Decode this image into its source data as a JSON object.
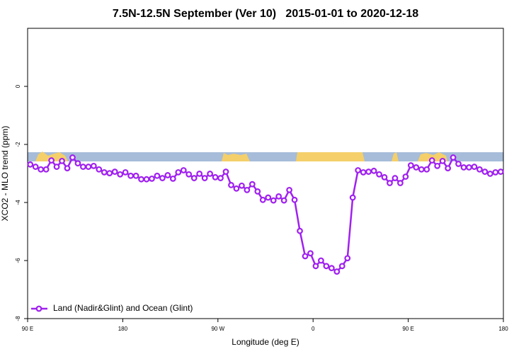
{
  "chart_data": {
    "type": "line",
    "title": "7.5N-12.5N September (Ver 10)   2015-01-01 to 2020-12-18",
    "xlabel": "Longitude (deg E)",
    "ylabel": "XCO2 - MLO trend (ppm)",
    "xlim": [
      90,
      540
    ],
    "ylim": [
      -8,
      2
    ],
    "xticks": [
      {
        "value": 90,
        "label": "90 E"
      },
      180,
      {
        "value": 270,
        "label": "90 W"
      },
      {
        "value": 360,
        "label": "0"
      },
      {
        "value": 450,
        "label": "90 E"
      },
      {
        "value": 540,
        "label": "180"
      }
    ],
    "yticks": [
      0,
      -2,
      -4,
      -6,
      -8
    ],
    "legend": "bottom-left",
    "x": [
      92.5,
      97.5,
      102.5,
      107.5,
      112.5,
      117.5,
      122.5,
      127.5,
      132.5,
      137.5,
      142.5,
      147.5,
      152.5,
      157.5,
      162.5,
      167.5,
      172.5,
      177.5,
      182.5,
      187.5,
      192.5,
      197.5,
      202.5,
      207.5,
      212.5,
      217.5,
      222.5,
      227.5,
      232.5,
      237.5,
      242.5,
      247.5,
      252.5,
      257.5,
      262.5,
      267.5,
      272.5,
      277.5,
      282.5,
      287.5,
      292.5,
      297.5,
      302.5,
      307.5,
      312.5,
      317.5,
      322.5,
      327.5,
      332.5,
      337.5,
      342.5,
      347.5,
      352.5,
      357.5,
      362.5,
      367.5,
      372.5,
      377.5,
      382.5,
      387.5,
      392.5,
      397.5,
      402.5,
      407.5,
      412.5,
      417.5,
      422.5,
      427.5,
      432.5,
      437.5,
      442.5,
      447.5,
      452.5,
      457.5,
      462.5,
      467.5,
      472.5,
      477.5,
      482.5,
      487.5,
      492.5,
      497.5,
      502.5,
      507.5,
      512.5,
      517.5,
      522.5,
      527.5,
      532.5,
      537.5
    ],
    "series": [
      {
        "name": "Land (Nadir&Glint) and Ocean (Glint)",
        "color": "#a020f0",
        "values": [
          -2.69,
          -2.77,
          -2.86,
          -2.86,
          -2.55,
          -2.77,
          -2.57,
          -2.82,
          -2.45,
          -2.65,
          -2.77,
          -2.77,
          -2.74,
          -2.86,
          -2.96,
          -2.99,
          -2.94,
          -3.03,
          -2.96,
          -3.08,
          -3.08,
          -3.2,
          -3.2,
          -3.18,
          -3.08,
          -3.16,
          -3.06,
          -3.18,
          -2.96,
          -2.89,
          -3.03,
          -3.16,
          -3.01,
          -3.16,
          -3.01,
          -3.13,
          -3.16,
          -2.94,
          -3.4,
          -3.52,
          -3.42,
          -3.57,
          -3.37,
          -3.62,
          -3.91,
          -3.83,
          -3.93,
          -3.79,
          -3.93,
          -3.57,
          -3.91,
          -4.98,
          -5.85,
          -5.75,
          -6.19,
          -6,
          -6.19,
          -6.26,
          -6.38,
          -6.19,
          -5.92,
          -3.83,
          -2.89,
          -2.96,
          -2.94,
          -2.91,
          -3.03,
          -3.13,
          -3.33,
          -3.16,
          -3.33,
          -3.11,
          -2.72,
          -2.79,
          -2.86,
          -2.86,
          -2.55,
          -2.74,
          -2.57,
          -2.82,
          -2.45,
          -2.67,
          -2.79,
          -2.79,
          -2.77,
          -2.86,
          -2.94,
          -3.01,
          -2.96,
          -2.94
        ]
      }
    ]
  }
}
